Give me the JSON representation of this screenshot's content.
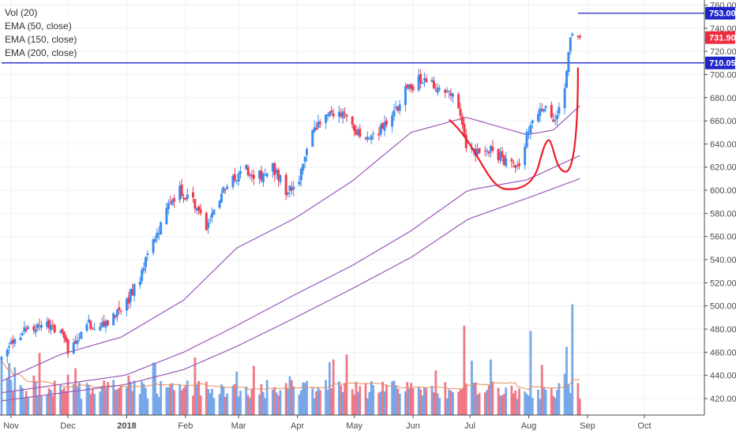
{
  "legend": {
    "vol": "Vol (20)",
    "ema50": "EMA (50, close)",
    "ema150": "EMA (150, close)",
    "ema200": "EMA (200, close)"
  },
  "colors": {
    "up": "#3c8cf0",
    "down": "#ef3a4c",
    "vol_up": "#6a9fe6",
    "vol_down": "#ee6a7a",
    "ema": "#9b59b6",
    "vol_ma": "#e58e5f",
    "hline": "#1f24c8",
    "tag": "#1f24c8",
    "last_tag": "#ef2b3e",
    "annotation": "#ee1c25"
  },
  "chart_data": {
    "type": "candlestick",
    "x_labels": [
      "Nov",
      "Dec",
      "2018",
      "Feb",
      "Mar",
      "Apr",
      "May",
      "Jun",
      "Jul",
      "Aug",
      "Sep",
      "Oct"
    ],
    "y_ticks": [
      420,
      440,
      460,
      480,
      500,
      520,
      540,
      560,
      580,
      600,
      620,
      640,
      660,
      680,
      700,
      720,
      740,
      760
    ],
    "ylim": [
      405,
      762
    ],
    "start_date": "2017-10-27",
    "end_date": "2018-10-31",
    "last_bar_date": "2018-08-28",
    "last_close": 731.9,
    "horizontal_levels": [
      {
        "value": 753.0,
        "label": "753.00",
        "from_date": "2018-08-27"
      },
      {
        "value": 710.05,
        "label": "710.05",
        "from_date": "2017-10-27"
      }
    ],
    "price_path": [
      [
        "2017-10-27",
        455
      ],
      [
        "2017-11-03",
        470
      ],
      [
        "2017-11-10",
        480
      ],
      [
        "2017-11-20",
        487
      ],
      [
        "2017-11-27",
        478
      ],
      [
        "2017-12-01",
        462
      ],
      [
        "2017-12-05",
        472
      ],
      [
        "2017-12-12",
        485
      ],
      [
        "2017-12-20",
        482
      ],
      [
        "2017-12-29",
        495
      ],
      [
        "2018-01-08",
        525
      ],
      [
        "2018-01-15",
        555
      ],
      [
        "2018-01-22",
        585
      ],
      [
        "2018-01-29",
        600
      ],
      [
        "2018-02-05",
        590
      ],
      [
        "2018-02-12",
        570
      ],
      [
        "2018-02-19",
        595
      ],
      [
        "2018-02-26",
        610
      ],
      [
        "2018-03-05",
        618
      ],
      [
        "2018-03-12",
        612
      ],
      [
        "2018-03-19",
        620
      ],
      [
        "2018-03-26",
        600
      ],
      [
        "2018-04-02",
        610
      ],
      [
        "2018-04-09",
        650
      ],
      [
        "2018-04-16",
        665
      ],
      [
        "2018-04-23",
        670
      ],
      [
        "2018-04-30",
        652
      ],
      [
        "2018-05-07",
        645
      ],
      [
        "2018-05-14",
        650
      ],
      [
        "2018-05-21",
        662
      ],
      [
        "2018-05-28",
        685
      ],
      [
        "2018-06-04",
        695
      ],
      [
        "2018-06-11",
        692
      ],
      [
        "2018-06-18",
        685
      ],
      [
        "2018-06-25",
        675
      ],
      [
        "2018-06-29",
        640
      ],
      [
        "2018-07-06",
        630
      ],
      [
        "2018-07-13",
        635
      ],
      [
        "2018-07-20",
        625
      ],
      [
        "2018-07-27",
        618
      ],
      [
        "2018-08-02",
        660
      ],
      [
        "2018-08-09",
        672
      ],
      [
        "2018-08-14",
        655
      ],
      [
        "2018-08-20",
        690
      ],
      [
        "2018-08-24",
        740
      ],
      [
        "2018-08-28",
        731.9
      ]
    ],
    "ema50": [
      [
        "2017-10-27",
        435
      ],
      [
        "2017-11-27",
        458
      ],
      [
        "2017-12-29",
        473
      ],
      [
        "2018-01-31",
        505
      ],
      [
        "2018-02-28",
        550
      ],
      [
        "2018-03-31",
        576
      ],
      [
        "2018-04-30",
        608
      ],
      [
        "2018-05-31",
        650
      ],
      [
        "2018-06-29",
        663
      ],
      [
        "2018-07-31",
        648
      ],
      [
        "2018-08-14",
        652
      ],
      [
        "2018-08-28",
        673
      ]
    ],
    "ema150": [
      [
        "2017-10-27",
        425
      ],
      [
        "2017-12-31",
        440
      ],
      [
        "2018-01-31",
        460
      ],
      [
        "2018-02-28",
        483
      ],
      [
        "2018-03-31",
        510
      ],
      [
        "2018-04-30",
        535
      ],
      [
        "2018-05-31",
        565
      ],
      [
        "2018-06-30",
        600
      ],
      [
        "2018-07-31",
        609
      ],
      [
        "2018-08-28",
        630
      ]
    ],
    "ema200": [
      [
        "2017-10-27",
        418
      ],
      [
        "2017-12-31",
        432
      ],
      [
        "2018-01-31",
        445
      ],
      [
        "2018-02-28",
        465
      ],
      [
        "2018-03-31",
        490
      ],
      [
        "2018-04-30",
        515
      ],
      [
        "2018-05-31",
        542
      ],
      [
        "2018-06-30",
        575
      ],
      [
        "2018-07-31",
        593
      ],
      [
        "2018-08-28",
        610
      ]
    ],
    "volume_scale": {
      "base": 414,
      "max_units": 94
    },
    "volume_spikes": [
      [
        "2018-05-29",
        22
      ],
      [
        "2018-06-05",
        15
      ],
      [
        "2018-06-28",
        75
      ],
      [
        "2018-07-02",
        42
      ],
      [
        "2018-08-02",
        70
      ],
      [
        "2018-08-20",
        30
      ],
      [
        "2018-08-24",
        95
      ],
      [
        "2018-08-21",
        55
      ],
      [
        "2018-04-27",
        48
      ],
      [
        "2018-02-06",
        45
      ],
      [
        "2018-01-02",
        28
      ],
      [
        "2017-12-05",
        35
      ],
      [
        "2017-11-13",
        28
      ],
      [
        "2017-10-30",
        26
      ]
    ]
  }
}
